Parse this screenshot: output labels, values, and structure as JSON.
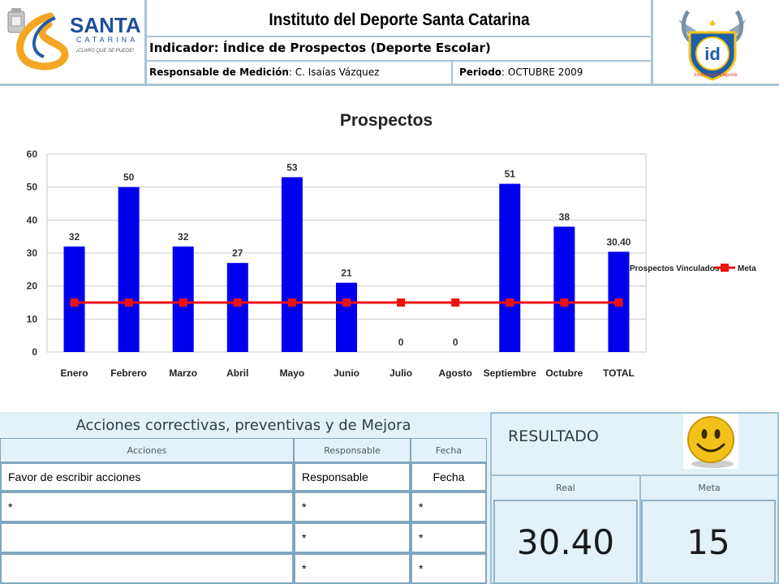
{
  "header": {
    "title": "Instituto del Deporte Santa Catarina",
    "indicator": "Indicador: Índice de Prospectos (Deporte Escolar)",
    "responsable_label": "Responsable de Medición",
    "responsable_value": ": C. Isaías Vázquez",
    "periodo_label": "Periodo",
    "periodo_value": ": OCTUBRE 2009",
    "logo_left_text": "SANTA",
    "logo_left_sub": "CATARINA",
    "logo_left_slogan": "¡CLARO QUE SE PUEDE!",
    "logo_right_text": "id",
    "logo_right_sub": "Instituto del Deporte"
  },
  "chart_data": {
    "type": "bar",
    "title": "Prospectos",
    "categories": [
      "Enero",
      "Febrero",
      "Marzo",
      "Abril",
      "Mayo",
      "Junio",
      "Julio",
      "Agosto",
      "Septiembre",
      "Octubre",
      "TOTAL"
    ],
    "series": [
      {
        "name": "Prospectos Vinculados",
        "values": [
          32,
          50,
          32,
          27,
          53,
          21,
          0,
          0,
          51,
          38,
          30.4
        ],
        "labels": [
          "32",
          "50",
          "32",
          "27",
          "53",
          "21",
          "0",
          "0",
          "51",
          "38",
          "30.40"
        ],
        "color": "#0000ee"
      },
      {
        "name": "Meta",
        "type": "line",
        "values": [
          15,
          15,
          15,
          15,
          15,
          15,
          15,
          15,
          15,
          15,
          15
        ],
        "color": "#ee1111"
      }
    ],
    "yticks": [
      0,
      10,
      20,
      30,
      40,
      50,
      60
    ],
    "ylim": [
      0,
      60
    ],
    "grid": true,
    "legend": "right"
  },
  "actions": {
    "title": "Acciones correctivas, preventivas y de Mejora",
    "col_acciones": "Acciones",
    "col_responsable": "Responsable",
    "col_fecha": "Fecha",
    "row1": {
      "accion": "Favor de escribir acciones",
      "responsable": "Responsable",
      "fecha": "Fecha"
    },
    "row2": {
      "accion": "*",
      "responsable": "*",
      "fecha": "*"
    },
    "row3": {
      "accion": "",
      "responsable": "*",
      "fecha": "*"
    },
    "row4": {
      "accion": "",
      "responsable": "*",
      "fecha": "*"
    }
  },
  "result": {
    "title": "RESULTADO",
    "real_label": "Real",
    "meta_label": "Meta",
    "real_value": "30.40",
    "meta_value": "15",
    "face_icon": "smiley-face-icon"
  }
}
